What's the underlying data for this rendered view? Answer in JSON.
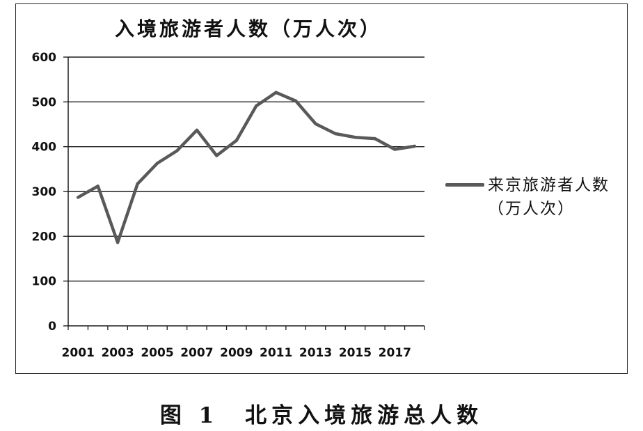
{
  "chart_data": {
    "type": "line",
    "title": "入境旅游者人数（万人次）",
    "xlabel": "",
    "ylabel": "",
    "x": [
      2001,
      2002,
      2003,
      2004,
      2005,
      2006,
      2007,
      2008,
      2009,
      2010,
      2011,
      2012,
      2013,
      2014,
      2015,
      2016,
      2017,
      2018
    ],
    "x_tick_labels": [
      "2001",
      "2003",
      "2005",
      "2007",
      "2009",
      "2011",
      "2013",
      "2015",
      "2017"
    ],
    "y_ticks": [
      0,
      100,
      200,
      300,
      400,
      500,
      600
    ],
    "ylim": [
      0,
      600
    ],
    "grid": true,
    "legend_position": "right",
    "series": [
      {
        "name": "来京旅游者人数（万人次）",
        "color": "#595959",
        "values": [
          287,
          312,
          186,
          317,
          363,
          391,
          437,
          380,
          414,
          491,
          521,
          502,
          451,
          429,
          421,
          418,
          394,
          401
        ]
      }
    ]
  },
  "caption": "图 1　北京入境旅游总人数"
}
